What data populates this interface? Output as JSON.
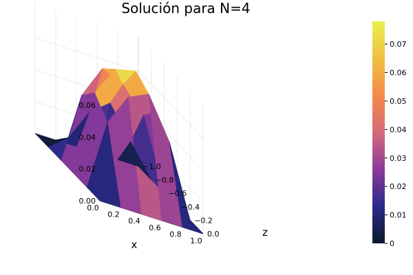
{
  "chart_data": {
    "type": "surface",
    "title": "Solución para N=4",
    "xlabel": "x",
    "ylabel": "z",
    "zlabel": "",
    "x_ticks": [
      "0.0",
      "0.2",
      "0.4",
      "0.6",
      "0.8",
      "1.0"
    ],
    "z_ticks": [
      "0.0",
      "−0.2",
      "−0.4",
      "−0.6",
      "−0.8",
      "−1.0"
    ],
    "value_ticks": [
      "0.00",
      "0.02",
      "0.04",
      "0.06"
    ],
    "colorbar_ticks": [
      "0",
      "0.01",
      "0.02",
      "0.03",
      "0.04",
      "0.05",
      "0.06",
      "0.07"
    ],
    "xlim": [
      0,
      1
    ],
    "zlim": [
      -1,
      0
    ],
    "vlim": [
      0,
      0.078
    ],
    "colormap": "thermal",
    "colormap_stops": [
      "#0a1a2a",
      "#2b2a8a",
      "#8a3a9a",
      "#d66a7a",
      "#f58a4a",
      "#f0c040",
      "#e8f050"
    ],
    "grid": true,
    "x_nodes": [
      0,
      0.2,
      0.4,
      0.6,
      0.8,
      1.0
    ],
    "z_nodes": [
      0,
      -0.2,
      -0.4,
      -0.6,
      -0.8,
      -1.0
    ],
    "values": [
      [
        0,
        0,
        0,
        0,
        0,
        0
      ],
      [
        0,
        0.045,
        0.065,
        0.071,
        0.045,
        0
      ],
      [
        0,
        0.055,
        0.074,
        0.077,
        0.055,
        0
      ],
      [
        0,
        0.045,
        0.066,
        0.06,
        0.045,
        0
      ],
      [
        0,
        0.01,
        0.03,
        0.04,
        0.02,
        0
      ],
      [
        0,
        0,
        0,
        0,
        0,
        0
      ]
    ]
  }
}
